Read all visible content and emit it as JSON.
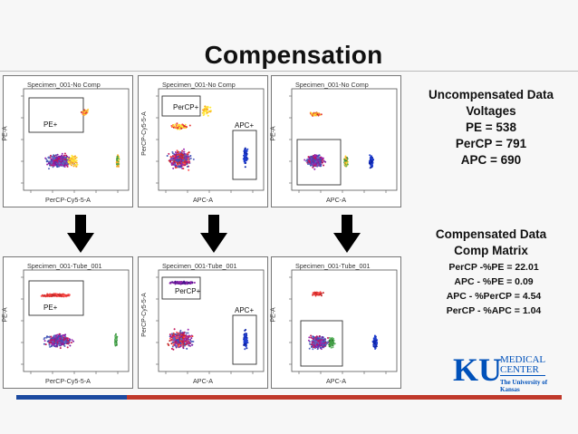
{
  "slide": {
    "title": "Compensation"
  },
  "uncompensated": {
    "heading": "Uncompensated Data",
    "line1": "Voltages",
    "line2": "PE = 538",
    "line3": "PerCP = 791",
    "line4": "APC = 690"
  },
  "compensated": {
    "heading": "Compensated Data",
    "subheading": "Comp Matrix",
    "m1": "PerCP -%PE = 22.01",
    "m2": "APC - %PE = 0.09",
    "m3": "APC - %PerCP = 4.54",
    "m4": "PerCP - %APC = 1.04"
  },
  "plots": {
    "top": [
      {
        "title": "Specimen_001-No Comp",
        "xlabel": "PerCP-Cy5-5-A",
        "ylabel": "PE-A",
        "gate": "PE+"
      },
      {
        "title": "Specimen_001-No Comp",
        "xlabel": "APC-A",
        "ylabel": "PerCP-Cy5-5-A",
        "gate": "PerCP+",
        "gate2": "APC+"
      },
      {
        "title": "Specimen_001-No Comp",
        "xlabel": "APC-A",
        "ylabel": "PE-A"
      }
    ],
    "bottom": [
      {
        "title": "Specimen_001-Tube_001",
        "xlabel": "PerCP-Cy5-5-A",
        "ylabel": "PE-A",
        "gate": "PE+"
      },
      {
        "title": "Specimen_001-Tube_001",
        "xlabel": "APC-A",
        "ylabel": "PerCP-Cy5-5-A",
        "gate": "PerCP+",
        "gate2": "APC+"
      },
      {
        "title": "Specimen_001-Tube_001",
        "xlabel": "APC-A",
        "ylabel": "PE-A"
      }
    ]
  },
  "logo": {
    "mark": "KU",
    "line1": "MEDICAL",
    "line2": "CENTER",
    "tagline": "The University of Kansas"
  },
  "colors": {
    "bar_blue": "#1c4aa0",
    "bar_red": "#c0392b",
    "brand_blue": "#0051ba"
  }
}
